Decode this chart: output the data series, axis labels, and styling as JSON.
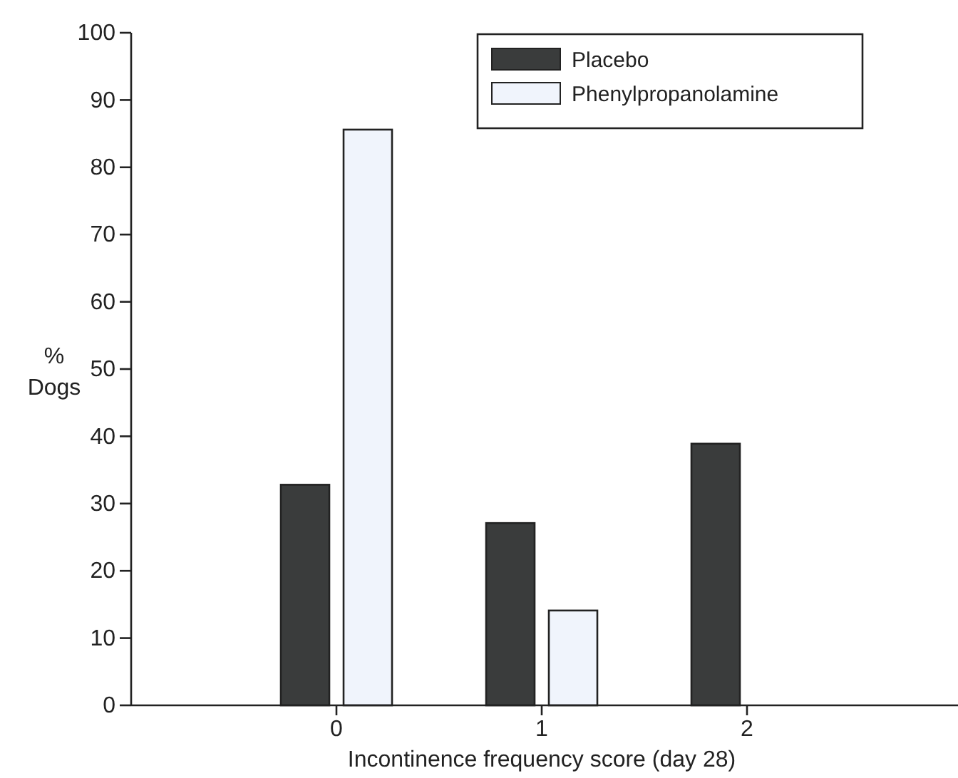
{
  "chart_data": {
    "type": "bar",
    "xlabel": "Incontinence frequency score (day 28)",
    "ylabel": "% Dogs",
    "categories": [
      "0",
      "1",
      "2"
    ],
    "series": [
      {
        "name": "Placebo",
        "color": "#3a3c3c",
        "values": [
          32.8,
          27.1,
          38.9
        ]
      },
      {
        "name": "Phenylpropanolamine",
        "color": "#f0f4fc",
        "values": [
          85.6,
          14.1,
          0
        ]
      }
    ],
    "ylim": [
      0,
      100
    ],
    "yticks": [
      0,
      10,
      20,
      30,
      40,
      50,
      60,
      70,
      80,
      90,
      100
    ],
    "grid": false,
    "legend": "top right"
  }
}
